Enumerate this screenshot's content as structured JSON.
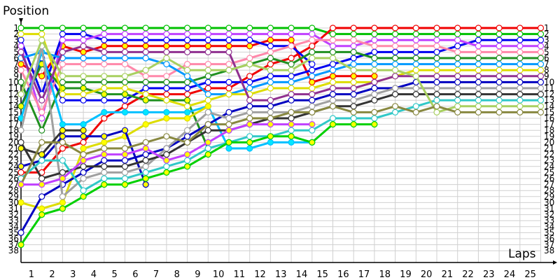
{
  "chart_data": {
    "type": "line",
    "ylabel": "Position",
    "xlabel": "Laps",
    "x_ticks": [
      1,
      2,
      3,
      4,
      5,
      6,
      7,
      8,
      9,
      10,
      11,
      12,
      13,
      14,
      15,
      16,
      17,
      18,
      19,
      20,
      21,
      22,
      23,
      24,
      25
    ],
    "y_ticks": [
      1,
      2,
      3,
      4,
      5,
      6,
      7,
      8,
      9,
      10,
      11,
      12,
      13,
      14,
      15,
      16,
      17,
      18,
      19,
      20,
      21,
      22,
      23,
      24,
      25,
      26,
      27,
      28,
      29,
      30,
      31,
      32,
      33,
      34,
      35,
      36,
      37,
      38
    ],
    "ylim": [
      1,
      38
    ],
    "y_inverted": true,
    "xlim": [
      0,
      25
    ],
    "grid": true,
    "series": [
      {
        "color": "#00c000",
        "marker_fill": "#ffffff",
        "values": [
          1,
          1,
          1,
          1,
          1,
          1,
          1,
          1,
          1,
          1,
          1,
          1,
          1,
          1,
          1,
          2,
          2,
          2,
          2,
          2,
          2,
          2,
          2,
          2,
          2,
          2
        ]
      },
      {
        "color": "#f00000",
        "marker_fill": "#ffffff",
        "values": [
          25,
          25,
          21,
          20,
          16,
          14,
          12,
          12,
          12,
          11,
          11,
          9,
          7,
          6,
          4,
          1,
          1,
          1,
          1,
          1,
          1,
          1,
          1,
          1,
          1,
          1
        ]
      },
      {
        "color": "#f00000",
        "marker_fill": "#ffff00",
        "values": [
          7,
          9,
          4,
          5,
          4,
          4,
          4,
          4,
          4,
          4,
          4,
          4,
          3,
          3,
          10,
          9,
          9,
          9,
          null,
          null,
          null,
          null,
          null,
          null,
          null,
          null
        ]
      },
      {
        "color": "#0000f0",
        "marker_fill": "#ffffff",
        "values": [
          3,
          12,
          2,
          2,
          3,
          3,
          3,
          3,
          3,
          3,
          3,
          3,
          4,
          4,
          7,
          null,
          null,
          null,
          null,
          null,
          null,
          null,
          null,
          null,
          null,
          null
        ]
      },
      {
        "color": "#0000f0",
        "marker_fill": "#ffffff",
        "values": [
          14,
          6,
          13,
          13,
          13,
          13,
          11,
          11,
          11,
          10,
          10,
          10,
          9,
          9,
          8,
          7,
          6,
          5,
          5,
          5,
          5,
          4,
          3,
          3,
          3,
          3
        ]
      },
      {
        "color": "#c040ff",
        "marker_fill": "#ffffff",
        "values": [
          4,
          16,
          3,
          3,
          2,
          2,
          2,
          2,
          2,
          2,
          2,
          2,
          2,
          2,
          2,
          4,
          4,
          3,
          3,
          3,
          3,
          3,
          4,
          4,
          4,
          4
        ]
      },
      {
        "color": "#ff88aa",
        "marker_fill": "#ffffff",
        "values": [
          8,
          15,
          7,
          7,
          7,
          7,
          9,
          9,
          7,
          7,
          7,
          6,
          5,
          4,
          3,
          3,
          3,
          4,
          4,
          4,
          4,
          5,
          5,
          5,
          5,
          5
        ]
      },
      {
        "color": "#209020",
        "marker_fill": "#ffffff",
        "values": [
          10,
          18,
          10,
          10,
          10,
          10,
          10,
          10,
          10,
          9,
          8,
          7,
          6,
          7,
          5,
          5,
          5,
          6,
          6,
          6,
          6,
          6,
          6,
          6,
          6,
          6
        ]
      },
      {
        "color": "#209020",
        "marker_fill": "#ffff00",
        "values": [
          14,
          7,
          11,
          11,
          12,
          12,
          13,
          13,
          13,
          21,
          null,
          null,
          null,
          null,
          null,
          null,
          null,
          null,
          null,
          null,
          null,
          null,
          null,
          null,
          null,
          null
        ]
      },
      {
        "color": "#0099ff",
        "marker_fill": "#ffffff",
        "values": [
          6,
          5,
          6,
          6,
          6,
          6,
          6,
          7,
          9,
          12,
          12,
          11,
          10,
          10,
          9,
          8,
          7,
          7,
          7,
          7,
          7,
          7,
          7,
          7,
          7,
          7
        ]
      },
      {
        "color": "#00c0ff",
        "marker_fill": "#00e8ff",
        "values": [
          16,
          5,
          17,
          17,
          15,
          15,
          15,
          15,
          15,
          14,
          21,
          21,
          20,
          20,
          20,
          null,
          null,
          null,
          null,
          null,
          null,
          null,
          null,
          null,
          null,
          null
        ]
      },
      {
        "color": "#dddd00",
        "marker_fill": "#ffffff",
        "values": [
          2,
          2,
          12,
          12,
          11,
          11,
          12,
          13,
          14,
          13,
          12,
          12,
          11,
          11,
          11,
          10,
          10,
          10,
          9,
          8,
          8,
          8,
          8,
          8,
          8,
          8
        ]
      },
      {
        "color": "#dddd00",
        "marker_fill": "#ffff00",
        "values": [
          30,
          31,
          30,
          21,
          20,
          19,
          17,
          16,
          16,
          14,
          null,
          null,
          null,
          null,
          null,
          null,
          null,
          null,
          null,
          null,
          null,
          null,
          null,
          null,
          null,
          null
        ]
      },
      {
        "color": "#903090",
        "marker_fill": "#ffffff",
        "values": [
          5,
          13,
          5,
          4,
          5,
          5,
          5,
          5,
          5,
          5,
          5,
          13,
          13,
          12,
          12,
          11,
          11,
          10,
          9,
          9,
          9,
          9,
          9,
          9,
          9,
          9
        ]
      },
      {
        "color": "#0000c0",
        "marker_fill": "#ffff00",
        "values": [
          24,
          23,
          19,
          19,
          19,
          18,
          27,
          null,
          null,
          null,
          null,
          null,
          null,
          null,
          null,
          null,
          null,
          null,
          null,
          null,
          null,
          null,
          null,
          null,
          null,
          null
        ]
      },
      {
        "color": "#0000c0",
        "marker_fill": "#ffffff",
        "values": [
          35,
          29,
          27,
          25,
          23,
          23,
          22,
          21,
          19,
          17,
          15,
          14,
          14,
          13,
          13,
          12,
          12,
          11,
          11,
          10,
          10,
          10,
          10,
          10,
          10,
          10
        ]
      },
      {
        "color": "#a0a0a0",
        "marker_fill": "#ffffff",
        "values": [
          18,
          4,
          29,
          26,
          25,
          25,
          24,
          21,
          18,
          15,
          16,
          15,
          15,
          15,
          14,
          13,
          13,
          12,
          11,
          11,
          11,
          11,
          11,
          11,
          11,
          11
        ]
      },
      {
        "color": "#333333",
        "marker_fill": "#ffffff",
        "values": [
          20,
          26,
          25,
          24,
          24,
          24,
          23,
          22,
          20,
          18,
          18,
          17,
          16,
          16,
          15,
          14,
          14,
          13,
          12,
          12,
          12,
          12,
          12,
          12,
          12,
          12
        ]
      },
      {
        "color": "#333333",
        "marker_fill": "#ffff00",
        "values": [
          21,
          22,
          18,
          18,
          null,
          null,
          null,
          null,
          null,
          null,
          null,
          null,
          null,
          null,
          null,
          null,
          null,
          null,
          null,
          null,
          null,
          null,
          null,
          null,
          null,
          null
        ]
      },
      {
        "color": "#30c8c8",
        "marker_fill": "#ffffff",
        "values": [
          26,
          23,
          23,
          28,
          26,
          26,
          25,
          24,
          23,
          21,
          20,
          19,
          19,
          18,
          18,
          16,
          16,
          16,
          15,
          14,
          13,
          13,
          13,
          13,
          13,
          13
        ]
      },
      {
        "color": "#a8d060",
        "marker_fill": "#ffffff",
        "values": [
          12,
          3,
          9,
          9,
          9,
          9,
          8,
          6,
          8,
          8,
          8,
          7,
          8,
          8,
          6,
          6,
          8,
          8,
          8,
          9,
          15,
          14,
          14,
          14,
          14,
          14
        ]
      },
      {
        "color": "#888840",
        "marker_fill": "#ffffff",
        "values": [
          27,
          20,
          20,
          22,
          21,
          21,
          20,
          19,
          20,
          17,
          17,
          16,
          16,
          15,
          15,
          14,
          15,
          15,
          14,
          15,
          14,
          15,
          15,
          15,
          15,
          15
        ]
      },
      {
        "color": "#c040ff",
        "marker_fill": "#ffff00",
        "values": [
          27,
          27,
          26,
          23,
          22,
          22,
          21,
          23,
          22,
          20,
          18,
          17,
          17,
          17,
          17,
          null,
          null,
          null,
          null,
          null,
          null,
          null,
          null,
          null,
          null,
          null
        ]
      },
      {
        "color": "#00d000",
        "marker_fill": "#ffff00",
        "values": [
          37,
          32,
          31,
          29,
          27,
          27,
          26,
          25,
          24,
          22,
          20,
          20,
          19,
          19,
          20,
          17,
          17,
          17,
          null,
          null,
          null,
          null,
          null,
          null,
          null,
          null
        ]
      }
    ]
  }
}
